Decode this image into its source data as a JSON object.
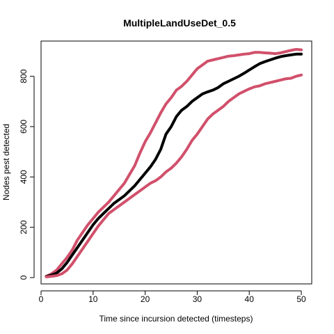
{
  "chart_data": {
    "type": "line",
    "title": "MultipleLandUseDet_0.5",
    "xlabel": "Time since incursion detected (timesteps)",
    "ylabel": "Nodes pest detected",
    "xlim": [
      0,
      52
    ],
    "ylim": [
      -25,
      940
    ],
    "xticks": [
      0,
      10,
      20,
      30,
      40,
      50
    ],
    "yticks": [
      0,
      200,
      400,
      600,
      800
    ],
    "grid": false,
    "legend": "none",
    "series": [
      {
        "role": "upper",
        "color": "#D1506B",
        "x": [
          1,
          2,
          3,
          4,
          5,
          6,
          7,
          8,
          9,
          10,
          11,
          12,
          13,
          14,
          15,
          16,
          17,
          18,
          19,
          20,
          21,
          22,
          23,
          24,
          25,
          26,
          27,
          28,
          29,
          30,
          31,
          32,
          33,
          34,
          35,
          36,
          37,
          38,
          39,
          40,
          41,
          42,
          43,
          44,
          45,
          46,
          47,
          48,
          49,
          50
        ],
        "values": [
          5,
          15,
          30,
          55,
          80,
          110,
          150,
          180,
          210,
          235,
          260,
          280,
          300,
          325,
          350,
          375,
          410,
          445,
          495,
          540,
          575,
          615,
          655,
          690,
          715,
          745,
          760,
          780,
          805,
          830,
          845,
          860,
          865,
          870,
          875,
          880,
          882,
          885,
          888,
          890,
          895,
          895,
          893,
          892,
          890,
          893,
          898,
          903,
          907,
          905
        ]
      },
      {
        "role": "mean",
        "color": "#000000",
        "x": [
          1,
          2,
          3,
          4,
          5,
          6,
          7,
          8,
          9,
          10,
          11,
          12,
          13,
          14,
          15,
          16,
          17,
          18,
          19,
          20,
          21,
          22,
          23,
          24,
          25,
          26,
          27,
          28,
          29,
          30,
          31,
          32,
          33,
          34,
          35,
          36,
          37,
          38,
          39,
          40,
          41,
          42,
          43,
          44,
          45,
          46,
          47,
          48,
          49,
          50
        ],
        "values": [
          5,
          10,
          18,
          35,
          60,
          90,
          120,
          150,
          180,
          210,
          235,
          255,
          275,
          295,
          310,
          325,
          345,
          365,
          390,
          415,
          440,
          470,
          510,
          570,
          600,
          640,
          665,
          680,
          700,
          715,
          730,
          738,
          745,
          755,
          770,
          780,
          790,
          800,
          812,
          825,
          838,
          850,
          858,
          865,
          872,
          878,
          882,
          885,
          888,
          888
        ]
      },
      {
        "role": "lower",
        "color": "#D1506B",
        "x": [
          1,
          2,
          3,
          4,
          5,
          6,
          7,
          8,
          9,
          10,
          11,
          12,
          13,
          14,
          15,
          16,
          17,
          18,
          19,
          20,
          21,
          22,
          23,
          24,
          25,
          26,
          27,
          28,
          29,
          30,
          31,
          32,
          33,
          34,
          35,
          36,
          37,
          38,
          39,
          40,
          41,
          42,
          43,
          44,
          45,
          46,
          47,
          48,
          49,
          50
        ],
        "values": [
          3,
          5,
          8,
          15,
          30,
          55,
          85,
          115,
          145,
          175,
          205,
          230,
          255,
          270,
          285,
          300,
          315,
          330,
          345,
          360,
          375,
          385,
          400,
          420,
          435,
          455,
          480,
          510,
          545,
          570,
          600,
          630,
          650,
          665,
          680,
          700,
          715,
          730,
          740,
          750,
          758,
          762,
          770,
          775,
          780,
          785,
          790,
          792,
          800,
          805
        ]
      }
    ]
  }
}
